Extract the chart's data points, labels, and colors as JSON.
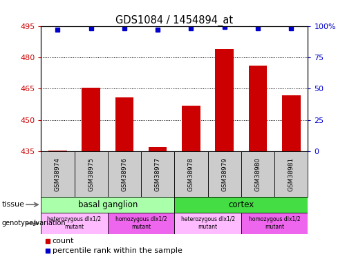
{
  "title": "GDS1084 / 1454894_at",
  "samples": [
    "GSM38974",
    "GSM38975",
    "GSM38976",
    "GSM38977",
    "GSM38978",
    "GSM38979",
    "GSM38980",
    "GSM38981"
  ],
  "bar_values": [
    435.5,
    465.5,
    461.0,
    437.0,
    457.0,
    484.0,
    476.0,
    462.0
  ],
  "percentile_values": [
    97,
    98,
    98,
    97,
    98,
    99,
    98,
    98
  ],
  "ylim_left": [
    435,
    495
  ],
  "yticks_left": [
    435,
    450,
    465,
    480,
    495
  ],
  "ylim_right": [
    0,
    100
  ],
  "yticks_right": [
    0,
    25,
    50,
    75,
    100
  ],
  "ytick_labels_right": [
    "0",
    "25",
    "50",
    "75",
    "100%"
  ],
  "bar_color": "#cc0000",
  "percentile_color": "#0000cc",
  "tissue_groups": [
    {
      "label": "basal ganglion",
      "start": 0,
      "end": 4,
      "color": "#aaffaa"
    },
    {
      "label": "cortex",
      "start": 4,
      "end": 8,
      "color": "#44dd44"
    }
  ],
  "genotype_groups": [
    {
      "label": "heterozygous dlx1/2\nmutant",
      "start": 0,
      "end": 2,
      "color": "#ffbbff"
    },
    {
      "label": "homozygous dlx1/2\nmutant",
      "start": 2,
      "end": 4,
      "color": "#ee66ee"
    },
    {
      "label": "heterozygous dlx1/2\nmutant",
      "start": 4,
      "end": 6,
      "color": "#ffbbff"
    },
    {
      "label": "homozygous dlx1/2\nmutant",
      "start": 6,
      "end": 8,
      "color": "#ee66ee"
    }
  ],
  "sample_box_color": "#cccccc",
  "axis_color_left": "#cc0000",
  "axis_color_right": "#0000cc",
  "fig_width": 5.15,
  "fig_height": 3.75,
  "dpi": 100
}
